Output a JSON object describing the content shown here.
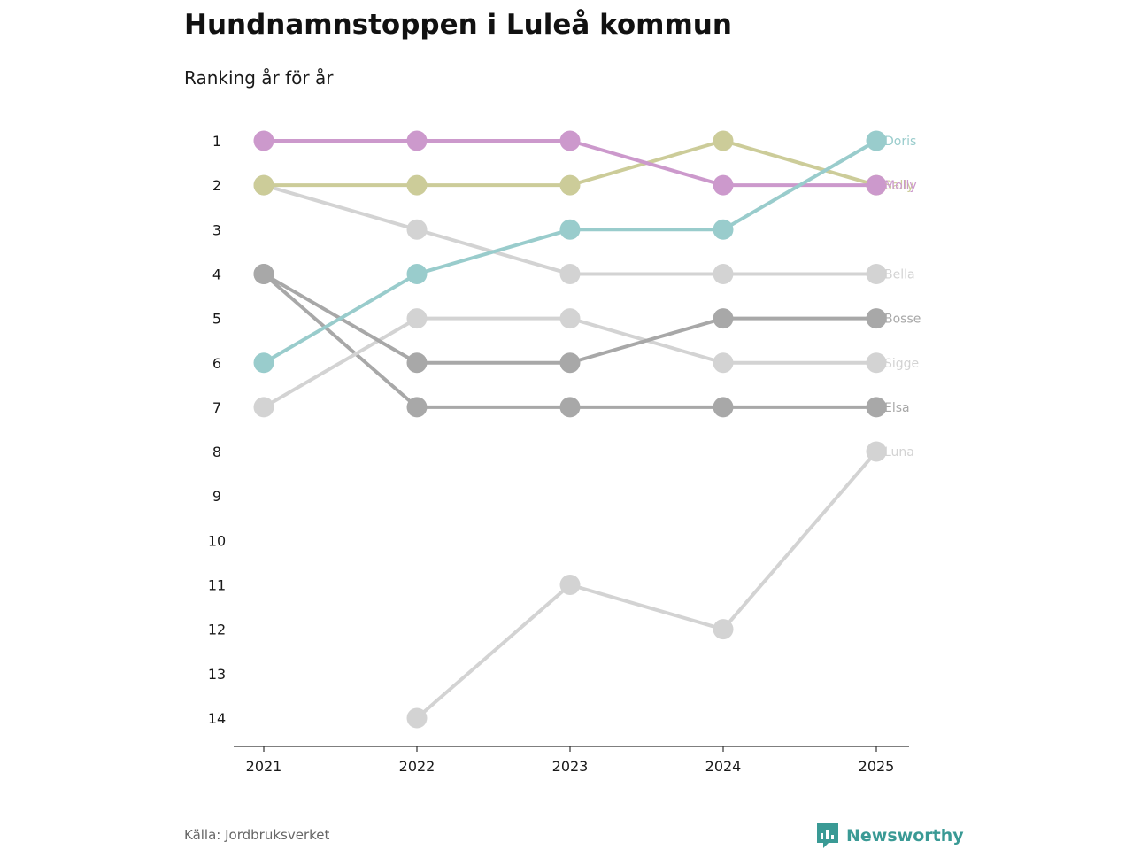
{
  "title": "Hundnamnstoppen i Luleå kommun",
  "subtitle": "Ranking år för år",
  "source": "Källa: Jordbruksverket",
  "brand": {
    "name": "Newsworthy",
    "icon": "bar-chart-speech-icon",
    "color": "#3a9a95"
  },
  "chart_data": {
    "type": "line",
    "subtype": "bump",
    "x": [
      "2021",
      "2022",
      "2023",
      "2024",
      "2025"
    ],
    "y_ticks": [
      "1",
      "2",
      "3",
      "4",
      "5",
      "6",
      "7",
      "8",
      "9",
      "10",
      "11",
      "12",
      "13",
      "14"
    ],
    "ylim": [
      1,
      14
    ],
    "y_inverted": true,
    "grid": false,
    "series": [
      {
        "name": "Luna",
        "color": "#d3d3d3",
        "values": [
          null,
          14,
          11,
          12,
          8
        ]
      },
      {
        "name": "Elsa",
        "color": "#a8a8a8",
        "values": [
          4,
          7,
          7,
          7,
          7
        ]
      },
      {
        "name": "Sigge",
        "color": "#d3d3d3",
        "values": [
          7,
          5,
          5,
          6,
          6
        ]
      },
      {
        "name": "Bosse",
        "color": "#a8a8a8",
        "values": [
          4,
          6,
          6,
          5,
          5
        ]
      },
      {
        "name": "Bella",
        "color": "#d3d3d3",
        "values": [
          2,
          3,
          4,
          4,
          4
        ]
      },
      {
        "name": "Sally",
        "color": "#cccc99",
        "values": [
          2,
          2,
          2,
          1,
          2
        ]
      },
      {
        "name": "Molly",
        "color": "#cc99cc",
        "values": [
          1,
          1,
          1,
          2,
          2
        ]
      },
      {
        "name": "Doris",
        "color": "#99cccc",
        "values": [
          6,
          4,
          3,
          3,
          1
        ]
      }
    ]
  }
}
